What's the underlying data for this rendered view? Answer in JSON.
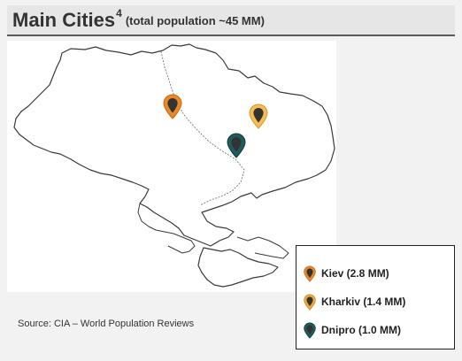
{
  "title": {
    "main": "Main Cities",
    "superscript": "4",
    "subtitle": "(total population ~45 MM)"
  },
  "source": "Source: CIA – World Population Reviews",
  "map": {
    "country_outline": "ukraine-outline",
    "pin_icon": "map-pin-icon"
  },
  "cities": [
    {
      "label": "Kiev (2.8 MM)",
      "color": "#e8882a",
      "ring": "#e8882a"
    },
    {
      "label": "Kharkiv (1.4 MM)",
      "color": "#f0a93e",
      "ring": "#f5be55"
    },
    {
      "label": "Dnipro (1.0 MM)",
      "color": "#1f5c5c",
      "ring": "#1f5c5c"
    }
  ]
}
